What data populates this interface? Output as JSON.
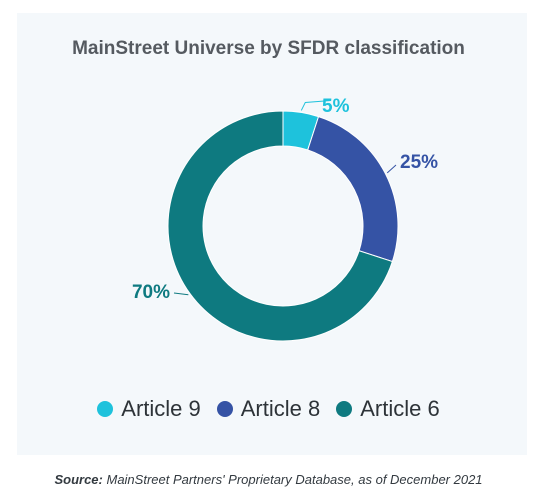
{
  "chart_data": {
    "type": "pie",
    "title": "MainStreet Universe by SFDR classification",
    "categories": [
      "Article 9",
      "Article 8",
      "Article 6"
    ],
    "values": [
      5,
      25,
      70
    ],
    "labels": [
      "5%",
      "25%",
      "70%"
    ],
    "colors": [
      "#1ec2dc",
      "#3553a5",
      "#0e7a80"
    ],
    "donut": true,
    "legend_position": "bottom"
  },
  "source": {
    "label": "Source:",
    "text": "MainStreet Partners' Proprietary Database, as of December 2021"
  }
}
